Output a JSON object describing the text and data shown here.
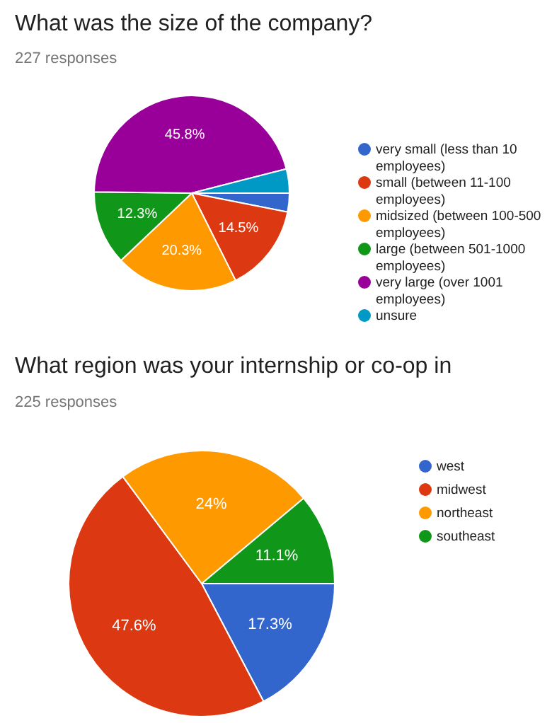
{
  "chart_data": [
    {
      "type": "pie",
      "title": "What was the size of the company?",
      "subtitle": "227 responses",
      "categories": [
        "very small (less than 10 employees)",
        "small (between 11-100 employees)",
        "midsized (between 100-500 employees)",
        "large (between 501-1000 employees)",
        "very large (over 1001 employees)",
        "unsure"
      ],
      "values": [
        3.1,
        14.5,
        20.3,
        12.3,
        45.8,
        4.0
      ],
      "colors": [
        "#3366cc",
        "#dc3912",
        "#ff9900",
        "#109618",
        "#990099",
        "#0099c6"
      ],
      "value_labels": [
        null,
        "14.5%",
        "20.3%",
        "12.3%",
        "45.8%",
        null
      ],
      "legend": "right"
    },
    {
      "type": "pie",
      "title": "What region was your internship or co-op in",
      "subtitle": "225 responses",
      "categories": [
        "west",
        "midwest",
        "northeast",
        "southeast"
      ],
      "values": [
        17.3,
        47.6,
        24,
        11.1
      ],
      "colors": [
        "#3366cc",
        "#dc3912",
        "#ff9900",
        "#109618"
      ],
      "value_labels": [
        "17.3%",
        "47.6%",
        "24%",
        "11.1%"
      ],
      "legend": "right"
    }
  ]
}
